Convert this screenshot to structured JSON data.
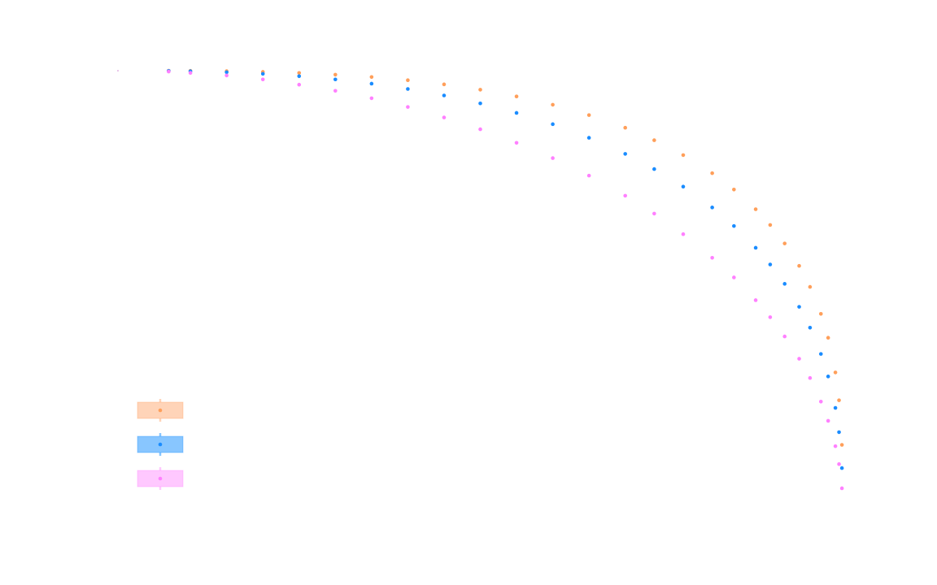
{
  "chart_data": {
    "type": "scatter",
    "title": "",
    "xlabel": "",
    "ylabel": "",
    "xlim": [
      0,
      1
    ],
    "ylim": [
      0,
      1
    ],
    "grid": false,
    "axes_visible": false,
    "legend_position": "bottom-left",
    "x": [
      0.07,
      0.1,
      0.15,
      0.2,
      0.25,
      0.3,
      0.35,
      0.4,
      0.45,
      0.5,
      0.55,
      0.6,
      0.65,
      0.7,
      0.74,
      0.78,
      0.82,
      0.85,
      0.88,
      0.9,
      0.92,
      0.94,
      0.955,
      0.97,
      0.98,
      0.99,
      0.995,
      0.999
    ],
    "series": [
      {
        "color": "#ff9f5a",
        "swatch": "#ffd4b8",
        "values": [
          1.0,
          0.9997,
          0.9989,
          0.9973,
          0.9948,
          0.9909,
          0.9855,
          0.9782,
          0.9687,
          0.9565,
          0.9411,
          0.9221,
          0.8984,
          0.8695,
          0.8409,
          0.8069,
          0.7655,
          0.7281,
          0.683,
          0.647,
          0.6047,
          0.5535,
          0.5054,
          0.4437,
          0.389,
          0.3096,
          0.246,
          0.144
        ]
      },
      {
        "color": "#1a8cff",
        "swatch": "#88c6ff",
        "values": [
          0.9995,
          0.9987,
          0.9965,
          0.9928,
          0.9874,
          0.98,
          0.9703,
          0.9582,
          0.9433,
          0.9252,
          0.9034,
          0.8776,
          0.8465,
          0.8096,
          0.7749,
          0.7347,
          0.6871,
          0.6447,
          0.5949,
          0.5566,
          0.5124,
          0.4598,
          0.4121,
          0.352,
          0.3005,
          0.2286,
          0.173,
          0.0909
        ]
      },
      {
        "color": "#ff80ff",
        "swatch": "#ffc8ff",
        "values": [
          0.998,
          0.995,
          0.989,
          0.98,
          0.968,
          0.954,
          0.937,
          0.917,
          0.893,
          0.866,
          0.835,
          0.8,
          0.76,
          0.714,
          0.673,
          0.626,
          0.572,
          0.527,
          0.475,
          0.436,
          0.392,
          0.341,
          0.297,
          0.243,
          0.199,
          0.141,
          0.1,
          0.0447
        ]
      }
    ]
  }
}
